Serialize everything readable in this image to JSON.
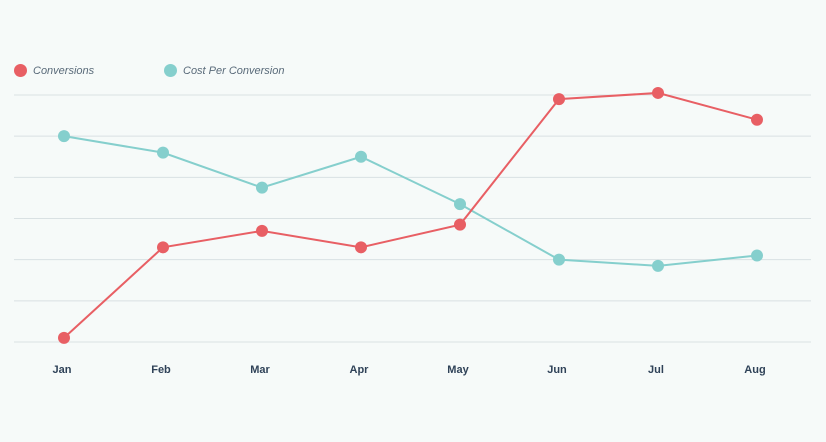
{
  "chart_data": {
    "type": "line",
    "categories": [
      "Jan",
      "Feb",
      "Mar",
      "Apr",
      "May",
      "Jun",
      "Jul",
      "Aug"
    ],
    "ylim": [
      0,
      6
    ],
    "grid": true,
    "legend_position": "top-left",
    "series": [
      {
        "name": "Conversions",
        "color": "#e85f64",
        "values": [
          0.1,
          2.3,
          2.7,
          2.3,
          2.85,
          5.9,
          6.05,
          5.4
        ]
      },
      {
        "name": "Cost Per Conversion",
        "color": "#85cfcd",
        "values": [
          5.0,
          4.6,
          3.75,
          4.5,
          3.35,
          2.0,
          1.85,
          2.1
        ]
      }
    ]
  }
}
